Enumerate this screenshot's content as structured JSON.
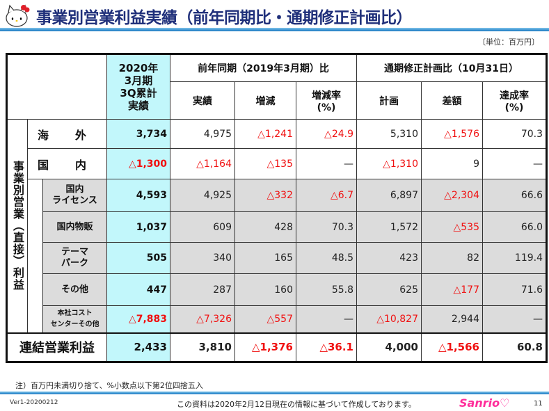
{
  "title": "事業別営業利益実績（前年同期比・通期修正計画比）",
  "unit": "〔単位：百万円〕",
  "header": {
    "current": "2020年\n3月期\n3Q累計\n実績",
    "prev_group": "前年同期（2019年3月期）比",
    "plan_group": "通期修正計画比（10月31日）",
    "cols": [
      "実績",
      "増減",
      "増減率\n(%)",
      "計画",
      "差額",
      "達成率\n(%)"
    ]
  },
  "side_label": "事業別営業（直接）利益",
  "rows": [
    {
      "label": "海　　外",
      "values": [
        "3,734",
        "4,975",
        "△1,241",
        "△24.9",
        "5,310",
        "△1,576",
        "70.3"
      ]
    },
    {
      "label": "国　　内",
      "values": [
        "△1,300",
        "△1,164",
        "△135",
        "—",
        "△1,310",
        "9",
        "—"
      ]
    },
    {
      "label": "国内\nライセンス",
      "values": [
        "4,593",
        "4,925",
        "△332",
        "△6.7",
        "6,897",
        "△2,304",
        "66.6"
      ]
    },
    {
      "label": "国内物販",
      "values": [
        "1,037",
        "609",
        "428",
        "70.3",
        "1,572",
        "△535",
        "66.0"
      ]
    },
    {
      "label": "テーマ\nパーク",
      "values": [
        "505",
        "340",
        "165",
        "48.5",
        "423",
        "82",
        "119.4"
      ]
    },
    {
      "label": "その他",
      "values": [
        "447",
        "287",
        "160",
        "55.8",
        "625",
        "△177",
        "71.6"
      ]
    },
    {
      "label": "本社コスト\nセンターその他",
      "values": [
        "△7,883",
        "△7,326",
        "△557",
        "—",
        "△10,827",
        "2,944",
        "—"
      ]
    }
  ],
  "total": {
    "label": "連結営業利益",
    "values": [
      "2,433",
      "3,810",
      "△1,376",
      "△36.1",
      "4,000",
      "△1,566",
      "60.8"
    ]
  },
  "note": "注）百万円未満切り捨て、%小数点以下第2位四捨五入",
  "version": "Ver1-20200212",
  "footer": "この資料は2020年2月12日現在の情報に基づいて作成しております。",
  "brand": "Sanrio",
  "page": "11"
}
